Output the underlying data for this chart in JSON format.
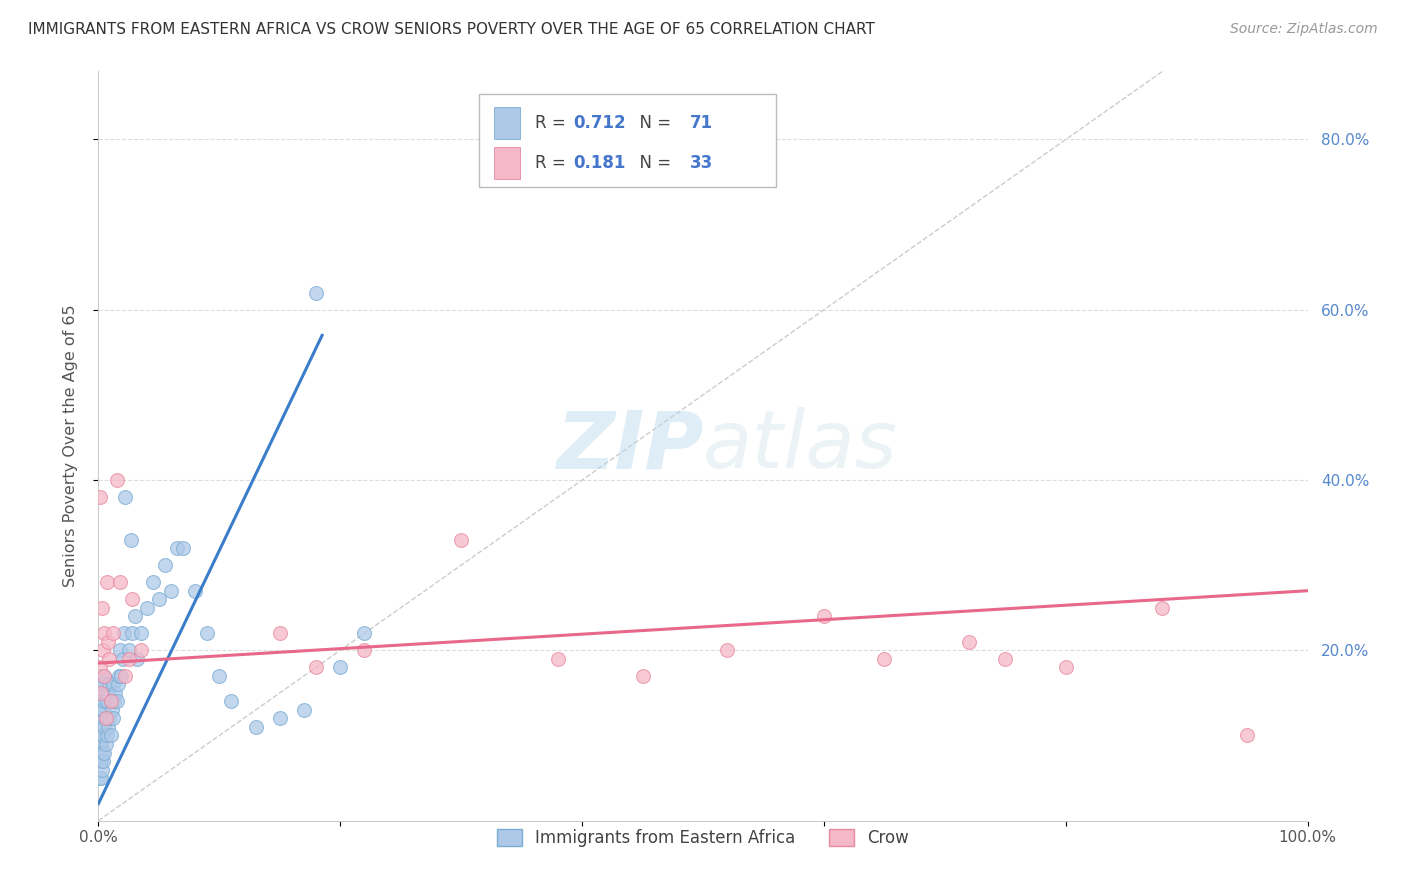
{
  "title": "IMMIGRANTS FROM EASTERN AFRICA VS CROW SENIORS POVERTY OVER THE AGE OF 65 CORRELATION CHART",
  "source": "Source: ZipAtlas.com",
  "ylabel": "Seniors Poverty Over the Age of 65",
  "xlim": [
    0.0,
    1.0
  ],
  "ylim": [
    0.0,
    0.88
  ],
  "xticks": [
    0.0,
    0.2,
    0.4,
    0.6,
    0.8,
    1.0
  ],
  "xticklabels": [
    "0.0%",
    "",
    "",
    "",
    "",
    "100.0%"
  ],
  "yticks_right": [
    0.2,
    0.4,
    0.6,
    0.8
  ],
  "yticklabels_right": [
    "20.0%",
    "40.0%",
    "60.0%",
    "80.0%"
  ],
  "blue_R": 0.712,
  "blue_N": 71,
  "pink_R": 0.181,
  "pink_N": 33,
  "blue_color": "#aec9e8",
  "blue_edge_color": "#7badd4",
  "pink_color": "#f5b8c8",
  "pink_edge_color": "#e889a0",
  "blue_line_color": "#3a7dc9",
  "pink_line_color": "#e8688a",
  "diagonal_color": "#cccccc",
  "watermark_zip": "ZIP",
  "watermark_atlas": "atlas",
  "blue_points_x": [
    0.001,
    0.001,
    0.001,
    0.001,
    0.001,
    0.002,
    0.002,
    0.002,
    0.002,
    0.002,
    0.002,
    0.003,
    0.003,
    0.003,
    0.003,
    0.003,
    0.004,
    0.004,
    0.004,
    0.004,
    0.005,
    0.005,
    0.005,
    0.005,
    0.006,
    0.006,
    0.006,
    0.007,
    0.007,
    0.008,
    0.008,
    0.009,
    0.009,
    0.01,
    0.01,
    0.011,
    0.012,
    0.012,
    0.013,
    0.014,
    0.015,
    0.016,
    0.017,
    0.018,
    0.019,
    0.02,
    0.021,
    0.022,
    0.025,
    0.027,
    0.028,
    0.03,
    0.032,
    0.035,
    0.04,
    0.045,
    0.05,
    0.055,
    0.06,
    0.065,
    0.07,
    0.08,
    0.09,
    0.1,
    0.11,
    0.13,
    0.15,
    0.17,
    0.18,
    0.2,
    0.22
  ],
  "blue_points_y": [
    0.05,
    0.07,
    0.09,
    0.12,
    0.14,
    0.05,
    0.07,
    0.09,
    0.11,
    0.14,
    0.17,
    0.06,
    0.08,
    0.1,
    0.13,
    0.16,
    0.07,
    0.1,
    0.13,
    0.16,
    0.08,
    0.11,
    0.14,
    0.17,
    0.09,
    0.12,
    0.15,
    0.1,
    0.14,
    0.11,
    0.15,
    0.12,
    0.16,
    0.1,
    0.14,
    0.13,
    0.12,
    0.16,
    0.14,
    0.15,
    0.14,
    0.16,
    0.17,
    0.2,
    0.17,
    0.19,
    0.22,
    0.38,
    0.2,
    0.33,
    0.22,
    0.24,
    0.19,
    0.22,
    0.25,
    0.28,
    0.26,
    0.3,
    0.27,
    0.32,
    0.32,
    0.27,
    0.22,
    0.17,
    0.14,
    0.11,
    0.12,
    0.13,
    0.62,
    0.18,
    0.22
  ],
  "pink_points_x": [
    0.001,
    0.001,
    0.002,
    0.003,
    0.004,
    0.005,
    0.005,
    0.006,
    0.007,
    0.008,
    0.009,
    0.01,
    0.012,
    0.015,
    0.018,
    0.022,
    0.025,
    0.028,
    0.035,
    0.15,
    0.18,
    0.22,
    0.3,
    0.38,
    0.45,
    0.52,
    0.6,
    0.65,
    0.72,
    0.75,
    0.8,
    0.88,
    0.95
  ],
  "pink_points_y": [
    0.18,
    0.38,
    0.15,
    0.25,
    0.2,
    0.17,
    0.22,
    0.12,
    0.28,
    0.21,
    0.19,
    0.14,
    0.22,
    0.4,
    0.28,
    0.17,
    0.19,
    0.26,
    0.2,
    0.22,
    0.18,
    0.2,
    0.33,
    0.19,
    0.17,
    0.2,
    0.24,
    0.19,
    0.21,
    0.19,
    0.18,
    0.25,
    0.1
  ],
  "blue_line_x": [
    0.0,
    0.185
  ],
  "blue_line_y": [
    0.02,
    0.57
  ],
  "pink_line_x": [
    0.0,
    1.0
  ],
  "pink_line_y": [
    0.185,
    0.27
  ],
  "diag_line_x": [
    0.0,
    0.88
  ],
  "diag_line_y": [
    0.0,
    0.88
  ]
}
